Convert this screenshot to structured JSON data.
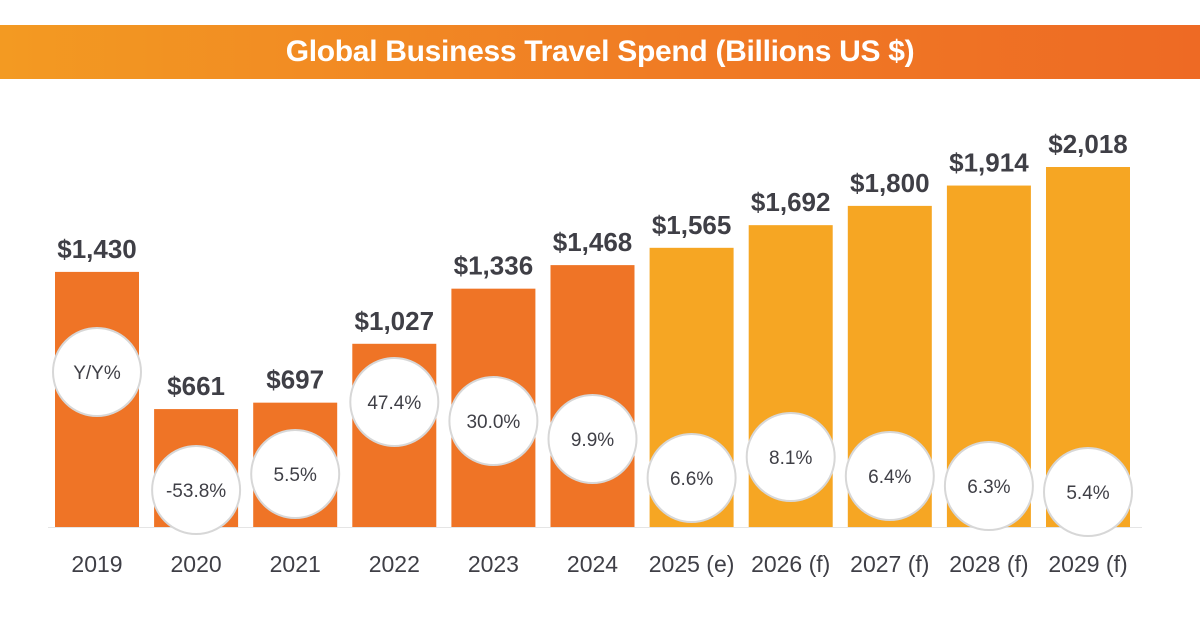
{
  "colors": {
    "actual_bar": "#ef7426",
    "forecast_bar": "#f6a623",
    "title_bar_start": "#f39a22",
    "title_bar_end": "#ee6a24",
    "text": "#3f3f46"
  },
  "chart_data": {
    "type": "bar",
    "title": "Global Business Travel Spend (Billions US $)",
    "categories": [
      "2019",
      "2020",
      "2021",
      "2022",
      "2023",
      "2024",
      "2025 (e)",
      "2026 (f)",
      "2027 (f)",
      "2028 (f)",
      "2029 (f)"
    ],
    "values": [
      1430,
      661,
      697,
      1027,
      1336,
      1468,
      1565,
      1692,
      1800,
      1914,
      2018
    ],
    "value_labels": [
      "$1,430",
      "$661",
      "$697",
      "$1,027",
      "$1,336",
      "$1,468",
      "$1,565",
      "$1,692",
      "$1,800",
      "$1,914",
      "$2,018"
    ],
    "yoy_labels": [
      "Y/Y%",
      "-53.8%",
      "5.5%",
      "47.4%",
      "30.0%",
      "9.9%",
      "6.6%",
      "8.1%",
      "6.4%",
      "6.3%",
      "5.4%"
    ],
    "bar_kind": [
      "actual",
      "actual",
      "actual",
      "actual",
      "actual",
      "actual",
      "forecast",
      "forecast",
      "forecast",
      "forecast",
      "forecast"
    ],
    "ylim": [
      0,
      2018
    ],
    "grid": false,
    "legend": "none"
  }
}
